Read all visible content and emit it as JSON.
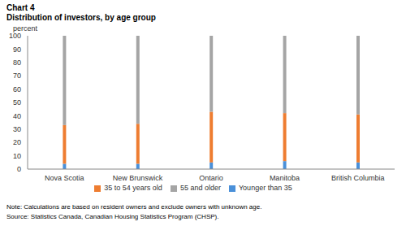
{
  "chart_data": {
    "type": "bar",
    "title": "Chart 4",
    "subtitle": "Distribution of investors, by age group",
    "ylabel": "percent",
    "note": "Note: Calculations are based on resident owners and exclude owners with unknown age.",
    "source": "Source: Statistics Canada, Canadian Housing Statistics Program (CHSP).",
    "categories": [
      "Nova Scotia",
      "New Brunswick",
      "Ontario",
      "Manitoba",
      "British Columbia"
    ],
    "series": [
      {
        "name": "Younger than 35",
        "color": "#4a90d9",
        "values": [
          4,
          4,
          5,
          6,
          5
        ]
      },
      {
        "name": "35 to 54 years old",
        "color": "#ee7d31",
        "values": [
          29,
          30,
          38,
          36,
          36
        ]
      },
      {
        "name": "55 and older",
        "color": "#a5a5a5",
        "values": [
          67,
          66,
          57,
          58,
          59
        ]
      }
    ],
    "stacked": true,
    "ylim": [
      0,
      100
    ],
    "yticks": [
      0,
      10,
      20,
      30,
      40,
      50,
      60,
      70,
      80,
      90,
      100
    ],
    "grid": false,
    "legend": "bottom"
  }
}
